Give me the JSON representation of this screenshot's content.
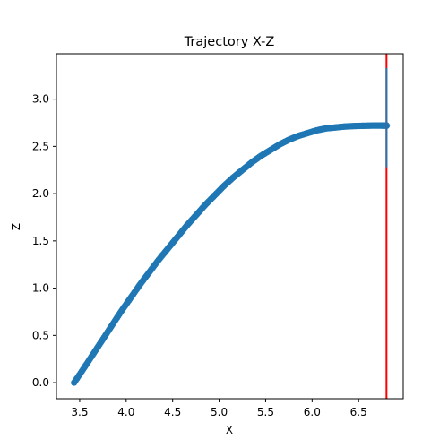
{
  "chart_data": {
    "type": "scatter",
    "title": "Trajectory X-Z",
    "xlabel": "X",
    "ylabel": "Z",
    "xlim": [
      3.25,
      6.98
    ],
    "ylim": [
      -0.17,
      3.48
    ],
    "xticks": [
      "3.5",
      "4.0",
      "4.5",
      "5.0",
      "5.5",
      "6.0",
      "6.5"
    ],
    "yticks": [
      "0.0",
      "0.5",
      "1.0",
      "1.5",
      "2.0",
      "2.5",
      "3.0"
    ],
    "grid": false,
    "legend": "none",
    "colors": {
      "series": "#1f77b4",
      "reference_line": "#ff0000"
    },
    "trajectory_endpoints": {
      "start": [
        3.44,
        0.0
      ],
      "end": [
        6.8,
        2.72
      ]
    },
    "vertical_reference_line": {
      "x": 6.8,
      "y_range": [
        -0.17,
        3.48
      ]
    },
    "vertical_marker_segment": {
      "x": 6.8,
      "y_range": [
        2.28,
        3.33
      ]
    },
    "series": [
      {
        "x": [
          3.44,
          3.55,
          3.65,
          3.75,
          3.85,
          3.95,
          4.05,
          4.15,
          4.25,
          4.35,
          4.45,
          4.55,
          4.65,
          4.75,
          4.85,
          4.95,
          5.05,
          5.15,
          5.25,
          5.35,
          5.45,
          5.55,
          5.65,
          5.75,
          5.85,
          5.95,
          6.05,
          6.15,
          6.25,
          6.35,
          6.45,
          6.55,
          6.65,
          6.75,
          6.8
        ],
        "y": [
          0.0,
          0.16,
          0.31,
          0.46,
          0.61,
          0.76,
          0.9,
          1.04,
          1.17,
          1.3,
          1.42,
          1.54,
          1.66,
          1.77,
          1.88,
          1.98,
          2.08,
          2.17,
          2.25,
          2.33,
          2.4,
          2.46,
          2.52,
          2.57,
          2.61,
          2.64,
          2.67,
          2.69,
          2.7,
          2.71,
          2.715,
          2.718,
          2.72,
          2.72,
          2.72
        ]
      }
    ]
  }
}
